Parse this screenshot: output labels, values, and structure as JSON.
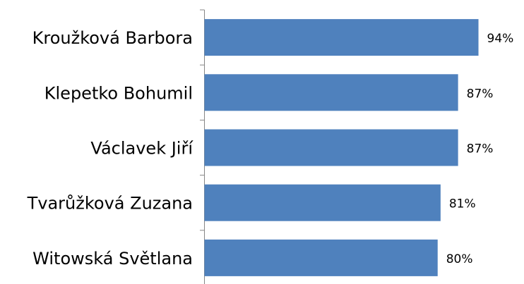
{
  "chart_data": {
    "type": "bar",
    "orientation": "horizontal",
    "categories": [
      "Kroužková Barbora",
      "Klepetko Bohumil",
      "Václavek Jiří",
      "Tvarůžková Zuzana",
      "Witowská Světlana"
    ],
    "values": [
      94,
      87,
      87,
      81,
      80
    ],
    "value_labels": [
      "94%",
      "87%",
      "87%",
      "81%",
      "80%"
    ],
    "color": "#4f81bd"
  }
}
